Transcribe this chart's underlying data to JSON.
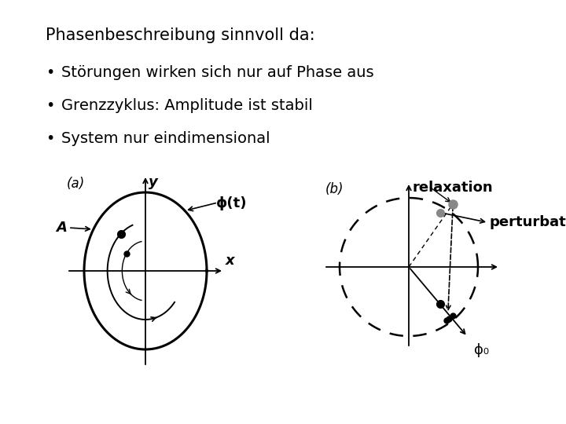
{
  "title": "Phasenbeschreibung sinnvoll da:",
  "bullets": [
    "Störungen wirken sich nur auf Phase aus",
    "Grenzzyklus: Amplitude ist stabil",
    "System nur eindimensional"
  ],
  "bg_color": "#ffffff",
  "text_color": "#000000",
  "label_a": "(a)",
  "label_b": "(b)",
  "label_phi_t": "ϕ(t)",
  "label_A": "A",
  "label_x": "x",
  "label_y": "y",
  "label_relaxation": "relaxation",
  "label_perturbation": "perturbati",
  "label_phi0": "ϕ₀",
  "font_size_title": 15,
  "font_size_bullets": 14,
  "font_size_diagram": 12
}
